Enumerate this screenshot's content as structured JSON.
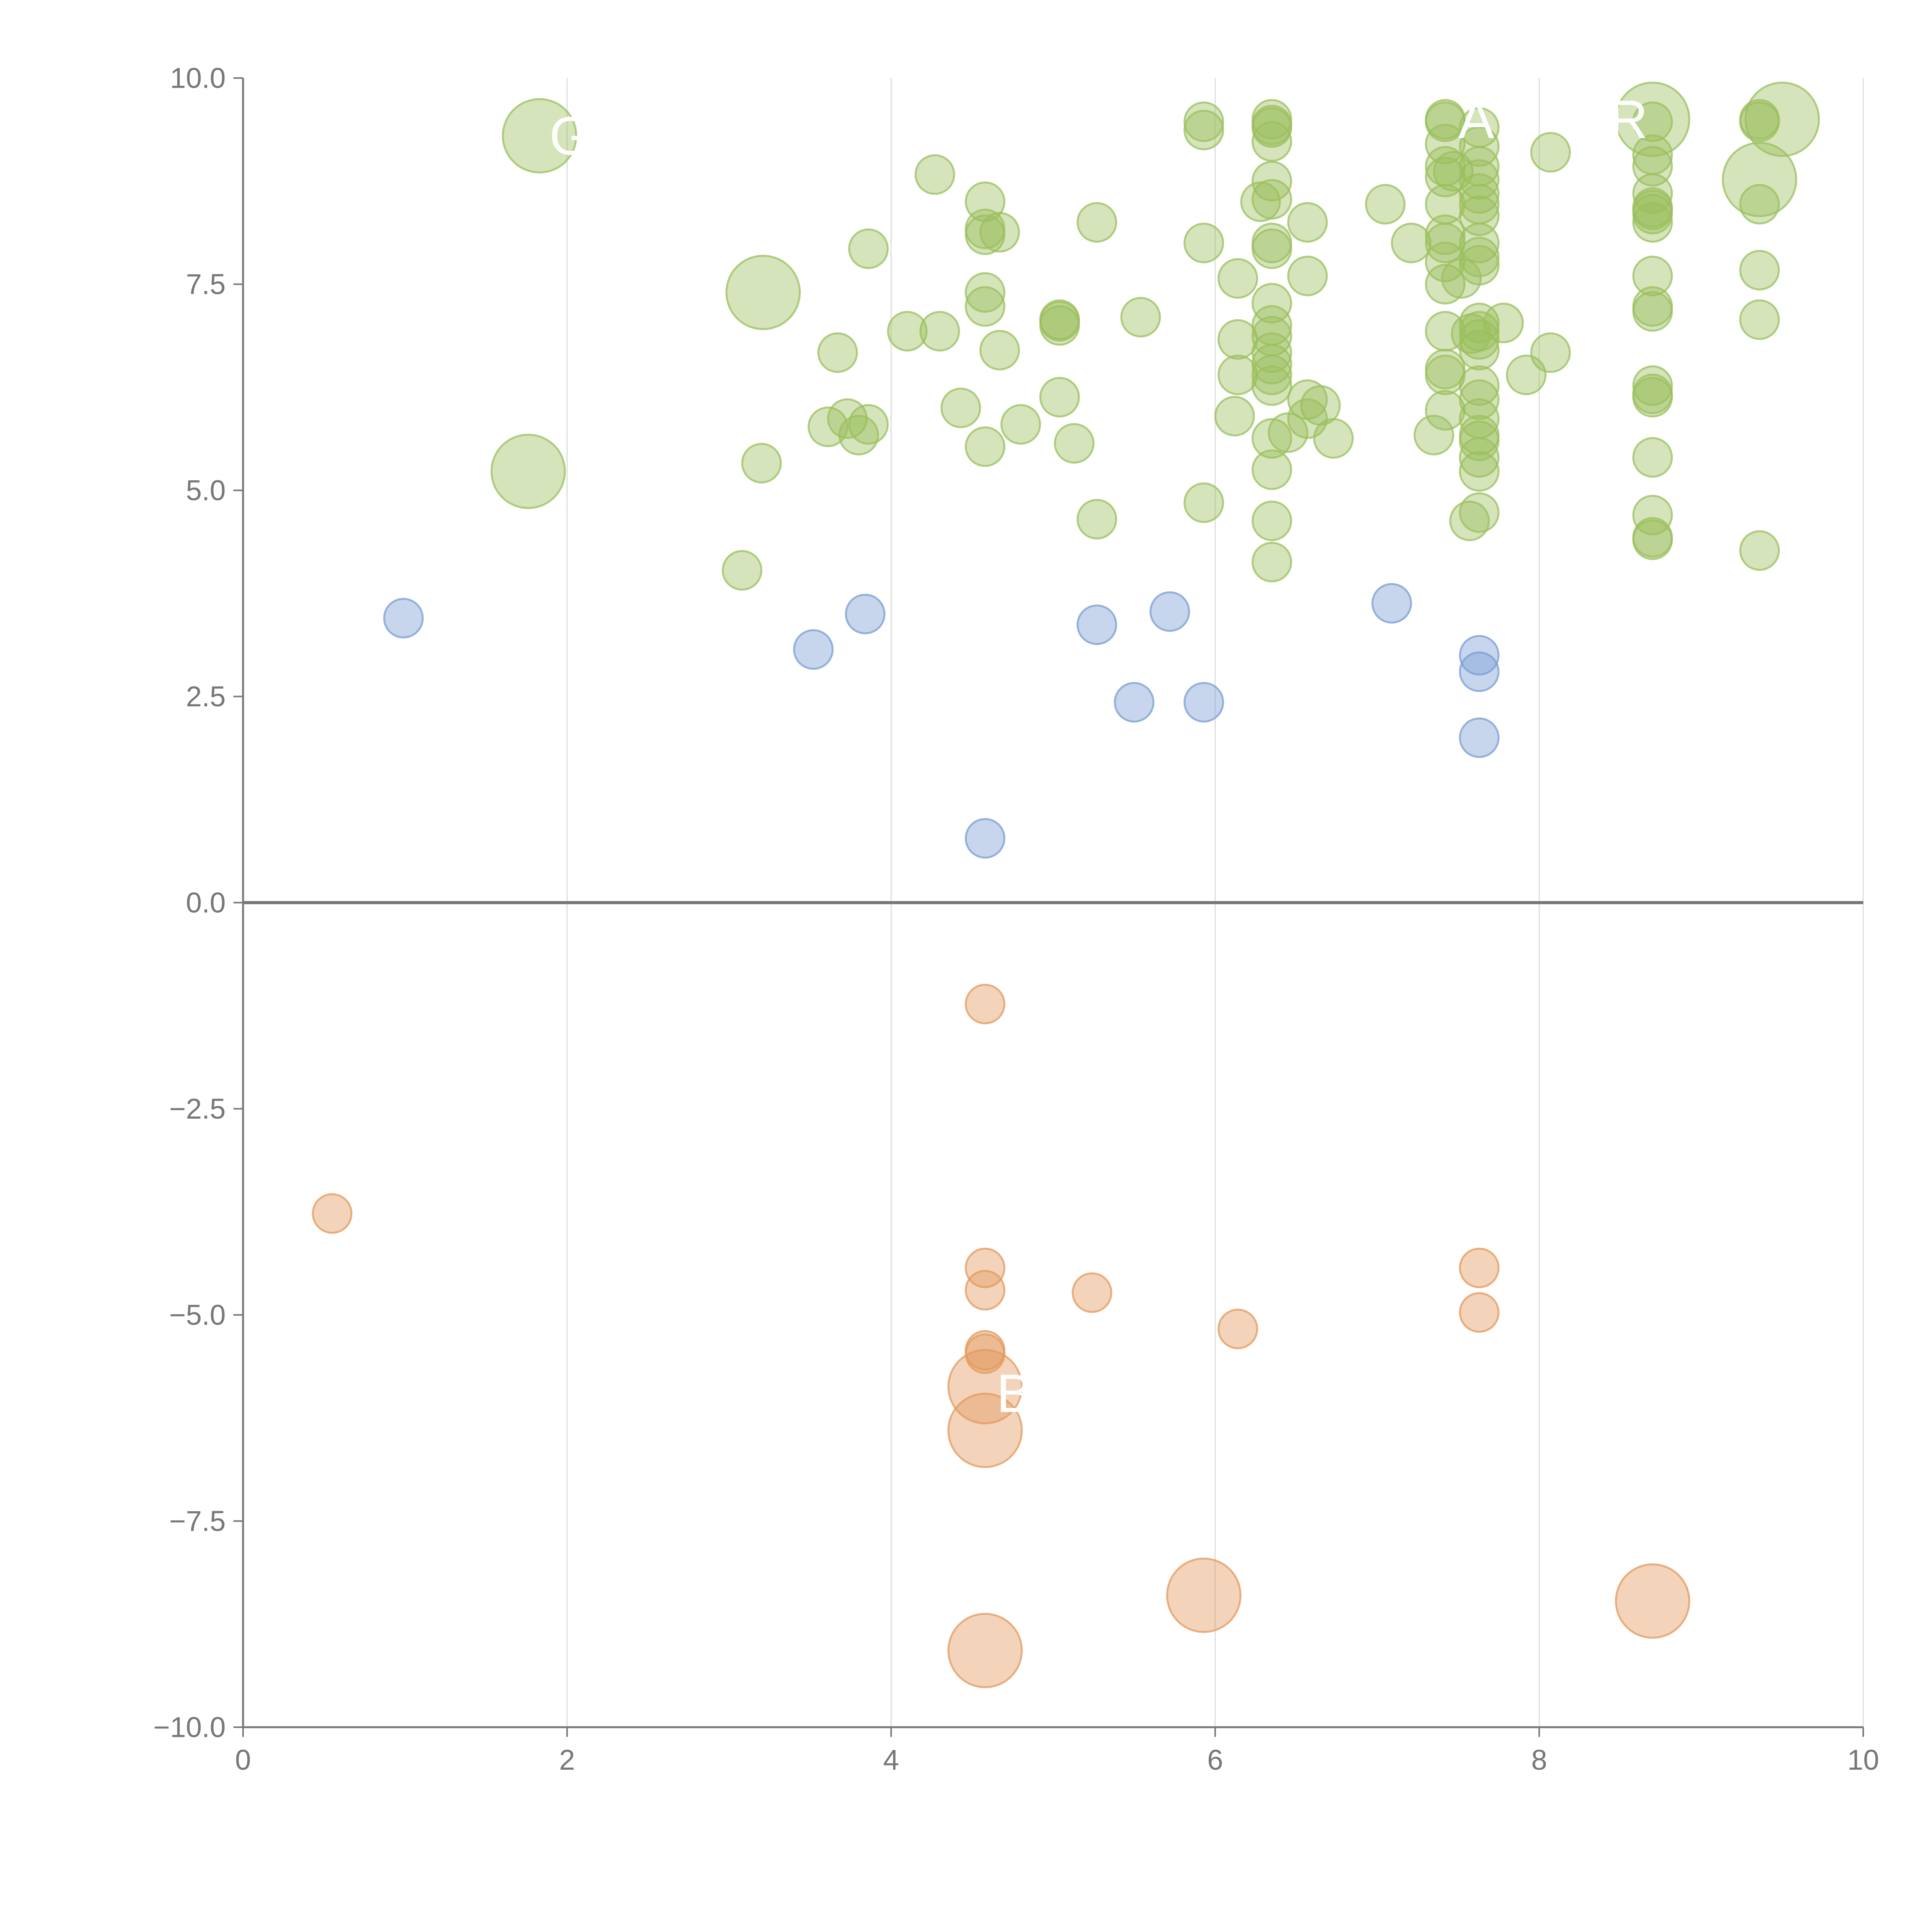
{
  "chart_data": {
    "type": "scatter",
    "title": "",
    "xlabel": "",
    "ylabel": "",
    "xlim": [
      0,
      10
    ],
    "ylim": [
      -10,
      10
    ],
    "x_ticks": [
      0,
      2,
      4,
      6,
      8,
      10
    ],
    "x_tick_labels": [
      "0",
      "2",
      "4",
      "6",
      "8",
      "10"
    ],
    "y_ticks": [
      -10,
      -7.5,
      -5,
      -2.5,
      0,
      2.5,
      5,
      7.5,
      10
    ],
    "y_tick_labels": [
      "−10.0",
      "−7.5",
      "−5.0",
      "−2.5",
      "0.0",
      "2.5",
      "5.0",
      "7.5",
      "10.0"
    ],
    "vertical_grid": true,
    "horizontal_grid": false,
    "zero_line": true,
    "legend": "none",
    "colors": {
      "green": "#9bbf5e",
      "blue": "#7a9ed3",
      "orange": "#e3995c",
      "axis": "#777777",
      "grid": "#dddddd",
      "zero_line": "#777777"
    },
    "series": [
      {
        "color": "green",
        "size": "small",
        "points": [
          [
            4.27,
            8.83
          ],
          [
            4.58,
            8.5
          ],
          [
            4.58,
            8.17
          ],
          [
            4.58,
            8.1
          ],
          [
            4.67,
            8.13
          ],
          [
            3.86,
            7.93
          ],
          [
            5.27,
            8.25
          ],
          [
            4.58,
            7.4
          ],
          [
            4.58,
            7.23
          ],
          [
            4.1,
            6.93
          ],
          [
            4.3,
            6.93
          ],
          [
            3.67,
            6.67
          ],
          [
            4.67,
            6.7
          ],
          [
            5.04,
            7.07
          ],
          [
            5.04,
            7.0
          ],
          [
            5.04,
            7.05
          ],
          [
            5.54,
            7.1
          ],
          [
            4.43,
            6.0
          ],
          [
            3.73,
            5.87
          ],
          [
            3.61,
            5.77
          ],
          [
            3.86,
            5.8
          ],
          [
            3.8,
            5.67
          ],
          [
            4.58,
            5.53
          ],
          [
            4.8,
            5.8
          ],
          [
            5.04,
            6.13
          ],
          [
            5.13,
            5.57
          ],
          [
            3.2,
            5.33
          ],
          [
            5.27,
            4.65
          ],
          [
            3.08,
            4.03
          ],
          [
            5.93,
            9.47
          ],
          [
            5.93,
            9.37
          ],
          [
            6.35,
            9.5
          ],
          [
            6.35,
            9.43
          ],
          [
            6.35,
            9.4
          ],
          [
            6.35,
            9.23
          ],
          [
            5.93,
            8.0
          ],
          [
            6.28,
            8.5
          ],
          [
            6.35,
            8.75
          ],
          [
            6.35,
            8.53
          ],
          [
            6.35,
            8.0
          ],
          [
            6.35,
            7.93
          ],
          [
            6.57,
            8.25
          ],
          [
            6.14,
            7.57
          ],
          [
            6.57,
            7.6
          ],
          [
            6.35,
            7.27
          ],
          [
            6.35,
            7.0
          ],
          [
            6.35,
            6.87
          ],
          [
            6.35,
            6.67
          ],
          [
            6.35,
            6.53
          ],
          [
            6.35,
            6.4
          ],
          [
            6.35,
            6.27
          ],
          [
            6.14,
            6.83
          ],
          [
            6.14,
            6.4
          ],
          [
            6.12,
            5.9
          ],
          [
            6.35,
            5.63
          ],
          [
            6.45,
            5.7
          ],
          [
            6.57,
            6.1
          ],
          [
            6.65,
            6.03
          ],
          [
            6.57,
            5.87
          ],
          [
            6.73,
            5.63
          ],
          [
            6.35,
            5.25
          ],
          [
            5.93,
            4.85
          ],
          [
            6.35,
            4.63
          ],
          [
            6.35,
            4.13
          ],
          [
            7.05,
            8.47
          ],
          [
            7.21,
            8.0
          ],
          [
            7.42,
            9.5
          ],
          [
            7.42,
            9.47
          ],
          [
            7.42,
            9.2
          ],
          [
            7.42,
            8.93
          ],
          [
            7.42,
            8.8
          ],
          [
            7.47,
            8.87
          ],
          [
            7.42,
            8.47
          ],
          [
            7.42,
            8.1
          ],
          [
            7.42,
            8.0
          ],
          [
            7.42,
            7.77
          ],
          [
            7.42,
            7.5
          ],
          [
            7.52,
            7.57
          ],
          [
            7.42,
            6.93
          ],
          [
            7.42,
            6.47
          ],
          [
            7.42,
            6.4
          ],
          [
            7.42,
            5.97
          ],
          [
            7.35,
            5.67
          ],
          [
            7.63,
            9.4
          ],
          [
            7.63,
            9.17
          ],
          [
            7.63,
            8.93
          ],
          [
            7.63,
            8.77
          ],
          [
            7.63,
            8.6
          ],
          [
            7.63,
            8.47
          ],
          [
            7.63,
            8.33
          ],
          [
            7.63,
            8.0
          ],
          [
            7.63,
            7.83
          ],
          [
            7.63,
            7.73
          ],
          [
            7.63,
            7.03
          ],
          [
            7.63,
            6.93
          ],
          [
            7.63,
            6.83
          ],
          [
            7.63,
            6.7
          ],
          [
            7.58,
            6.9
          ],
          [
            7.78,
            7.03
          ],
          [
            7.63,
            6.27
          ],
          [
            7.63,
            6.1
          ],
          [
            7.63,
            5.87
          ],
          [
            7.63,
            5.67
          ],
          [
            7.63,
            5.6
          ],
          [
            7.63,
            5.4
          ],
          [
            7.63,
            5.23
          ],
          [
            7.63,
            4.73
          ],
          [
            7.57,
            4.63
          ],
          [
            8.07,
            9.1
          ],
          [
            8.07,
            6.67
          ],
          [
            7.92,
            6.4
          ],
          [
            8.7,
            9.47
          ],
          [
            8.7,
            9.07
          ],
          [
            8.7,
            8.93
          ],
          [
            8.7,
            8.6
          ],
          [
            8.7,
            8.43
          ],
          [
            8.7,
            8.4
          ],
          [
            8.7,
            8.35
          ],
          [
            8.7,
            8.25
          ],
          [
            8.7,
            7.6
          ],
          [
            8.7,
            7.23
          ],
          [
            8.7,
            7.17
          ],
          [
            8.7,
            6.27
          ],
          [
            8.7,
            6.17
          ],
          [
            8.7,
            6.13
          ],
          [
            8.7,
            5.4
          ],
          [
            8.7,
            4.7
          ],
          [
            8.7,
            4.4
          ],
          [
            8.7,
            4.43
          ],
          [
            9.36,
            9.5
          ],
          [
            9.36,
            9.47
          ],
          [
            9.36,
            8.47
          ],
          [
            9.36,
            7.67
          ],
          [
            9.36,
            7.07
          ],
          [
            9.36,
            4.27
          ]
        ]
      },
      {
        "color": "green",
        "size": "large",
        "points": [
          [
            1.83,
            9.3
          ],
          [
            3.21,
            7.4
          ],
          [
            1.76,
            5.23
          ],
          [
            8.7,
            9.5
          ],
          [
            9.36,
            8.77
          ],
          [
            9.5,
            9.5
          ]
        ]
      },
      {
        "color": "blue",
        "size": "small",
        "points": [
          [
            0.99,
            3.45
          ],
          [
            3.52,
            3.07
          ],
          [
            3.84,
            3.5
          ],
          [
            5.27,
            3.37
          ],
          [
            5.72,
            3.53
          ],
          [
            7.09,
            3.63
          ],
          [
            5.5,
            2.43
          ],
          [
            5.93,
            2.43
          ],
          [
            7.63,
            3.0
          ],
          [
            7.63,
            2.8
          ],
          [
            7.63,
            2.0
          ],
          [
            4.58,
            0.78
          ]
        ]
      },
      {
        "color": "orange",
        "size": "small",
        "points": [
          [
            4.58,
            -1.23
          ],
          [
            0.55,
            -3.77
          ],
          [
            4.58,
            -4.43
          ],
          [
            4.58,
            -4.7
          ],
          [
            5.24,
            -4.73
          ],
          [
            7.63,
            -4.43
          ],
          [
            7.63,
            -4.97
          ],
          [
            6.14,
            -5.17
          ],
          [
            4.58,
            -5.43
          ],
          [
            4.58,
            -5.47
          ]
        ]
      },
      {
        "color": "orange",
        "size": "large",
        "points": [
          [
            4.58,
            -5.87
          ],
          [
            4.58,
            -6.4
          ],
          [
            5.93,
            -8.4
          ],
          [
            8.7,
            -8.47
          ],
          [
            4.58,
            -9.07
          ]
        ]
      }
    ],
    "annotations": [
      {
        "text": "G",
        "x": 1.89,
        "y": 9.3
      },
      {
        "text": "B",
        "x": 4.65,
        "y": -5.95
      },
      {
        "text": "A",
        "x": 7.5,
        "y": 9.5
      },
      {
        "text": "R",
        "x": 8.43,
        "y": 9.5
      }
    ]
  }
}
